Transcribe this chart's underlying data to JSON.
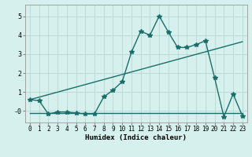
{
  "xlabel": "Humidex (Indice chaleur)",
  "bg_color": "#d6f0ee",
  "line_color": "#1a6e6a",
  "grid_color": "#b8d8d4",
  "xlim": [
    -0.5,
    23.5
  ],
  "ylim": [
    -0.6,
    5.6
  ],
  "yticks": [
    0,
    1,
    2,
    3,
    4,
    5
  ],
  "ytick_labels": [
    "-0",
    "1",
    "2",
    "3",
    "4",
    "5"
  ],
  "xticks": [
    0,
    1,
    2,
    3,
    4,
    5,
    6,
    7,
    8,
    9,
    10,
    11,
    12,
    13,
    14,
    15,
    16,
    17,
    18,
    19,
    20,
    21,
    22,
    23
  ],
  "line1_x": [
    0,
    1,
    2,
    3,
    4,
    5,
    6,
    7,
    8,
    9,
    10,
    11,
    12,
    13,
    14,
    15,
    16,
    17,
    18,
    19,
    20,
    21,
    22,
    23
  ],
  "line1_y": [
    0.6,
    0.55,
    -0.15,
    -0.05,
    -0.05,
    -0.1,
    -0.15,
    -0.15,
    0.75,
    1.1,
    1.55,
    3.1,
    4.2,
    4.0,
    5.0,
    4.15,
    3.35,
    3.35,
    3.5,
    3.7,
    1.75,
    -0.3,
    0.9,
    -0.25
  ],
  "line2_x": [
    0,
    23
  ],
  "line2_y": [
    0.6,
    3.65
  ],
  "line3_x": [
    0,
    23
  ],
  "line3_y": [
    -0.1,
    -0.1
  ],
  "marker": "*",
  "markersize": 4,
  "linewidth": 1.0,
  "tick_fontsize": 5.5,
  "xlabel_fontsize": 6.5
}
